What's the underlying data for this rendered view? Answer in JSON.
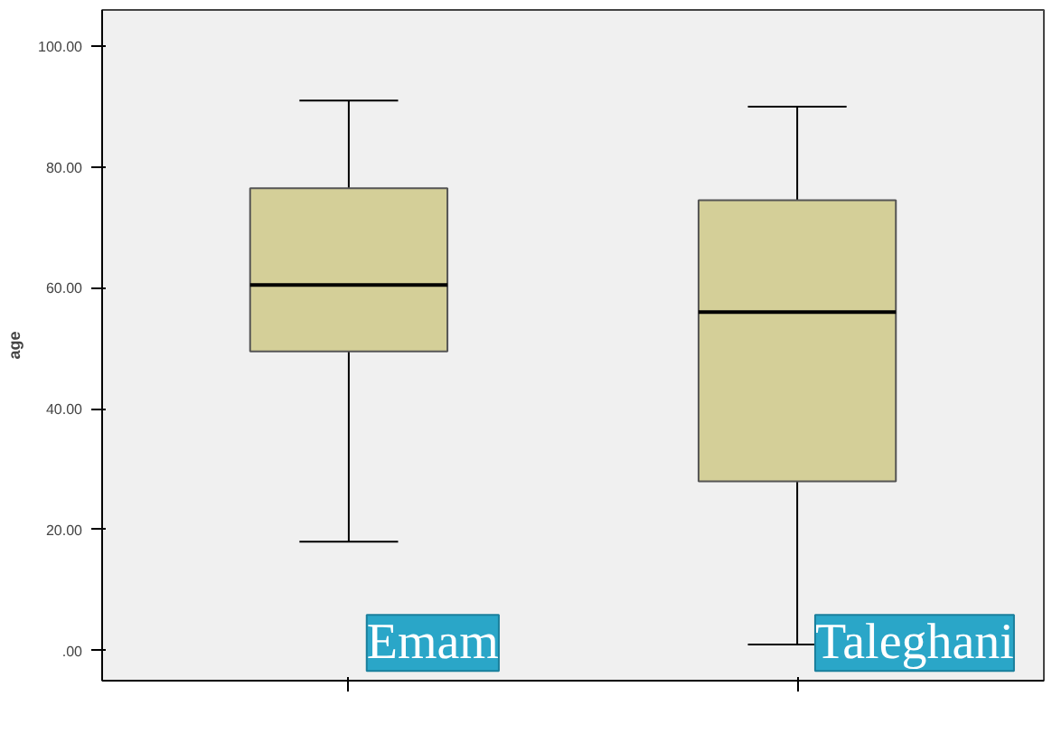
{
  "chart_data": {
    "type": "box",
    "ylabel": "age",
    "categories": [
      "Emam",
      "Taleghani"
    ],
    "boxes": [
      {
        "low": 18,
        "q1": 49.5,
        "median": 60.5,
        "q3": 76.5,
        "high": 91
      },
      {
        "low": 1,
        "q1": 28,
        "median": 56,
        "q3": 74.5,
        "high": 90
      }
    ],
    "color": "#d4cf98",
    "ylim": [
      -5,
      106
    ],
    "yticks": [
      {
        "value": 0,
        "label": ".00"
      },
      {
        "value": 20,
        "label": "20.00"
      },
      {
        "value": 40,
        "label": "40.00"
      },
      {
        "value": 60,
        "label": "60.00"
      },
      {
        "value": 80,
        "label": "80.00"
      },
      {
        "value": 100,
        "label": "100.00"
      }
    ],
    "grid": false
  }
}
